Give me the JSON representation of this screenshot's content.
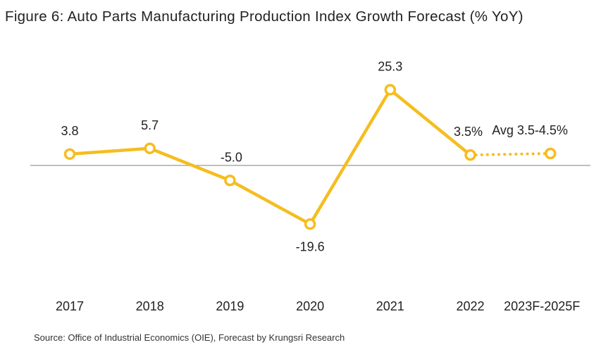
{
  "chart_data": {
    "type": "line",
    "title": "Figure 6: Auto Parts Manufacturing Production Index Growth Forecast (% YoY)",
    "categories": [
      "2017",
      "2018",
      "2019",
      "2020",
      "2021",
      "2022",
      "2023F-2025F"
    ],
    "series": [
      {
        "values": [
          3.8,
          5.7,
          -5.0,
          -19.6,
          25.3,
          3.5,
          4.0
        ],
        "data_labels": [
          "3.8",
          "5.7",
          "-5.0",
          "-19.6",
          "25.3",
          "3.5%",
          "Avg 3.5-4.5%"
        ],
        "forecast_from_index": 5
      }
    ],
    "colors": {
      "line": "#F5BD1F",
      "marker_fill": "#ffffff",
      "baseline": "#999999"
    },
    "grid": false,
    "legend": "none",
    "source": "Source: Office of Industrial Economics (OIE), Forecast by Krungsri Research"
  }
}
